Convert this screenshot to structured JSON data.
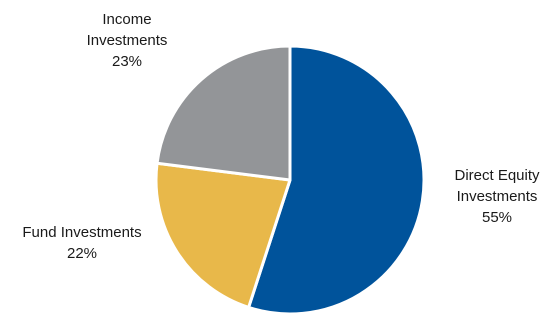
{
  "chart_data": {
    "type": "pie",
    "start_angle_deg": 0,
    "direction": "clockwise",
    "slice_separator_color": "#ffffff",
    "slices": [
      {
        "name": "direct-equity",
        "label_lines": [
          "Direct Equity",
          "Investments",
          "55%"
        ],
        "value": 55,
        "color": "#00539B"
      },
      {
        "name": "fund",
        "label_lines": [
          "Fund Investments",
          "22%"
        ],
        "value": 22,
        "color": "#E8B84A"
      },
      {
        "name": "income",
        "label_lines": [
          "Income",
          "Investments",
          "23%"
        ],
        "value": 23,
        "color": "#939598"
      }
    ]
  }
}
